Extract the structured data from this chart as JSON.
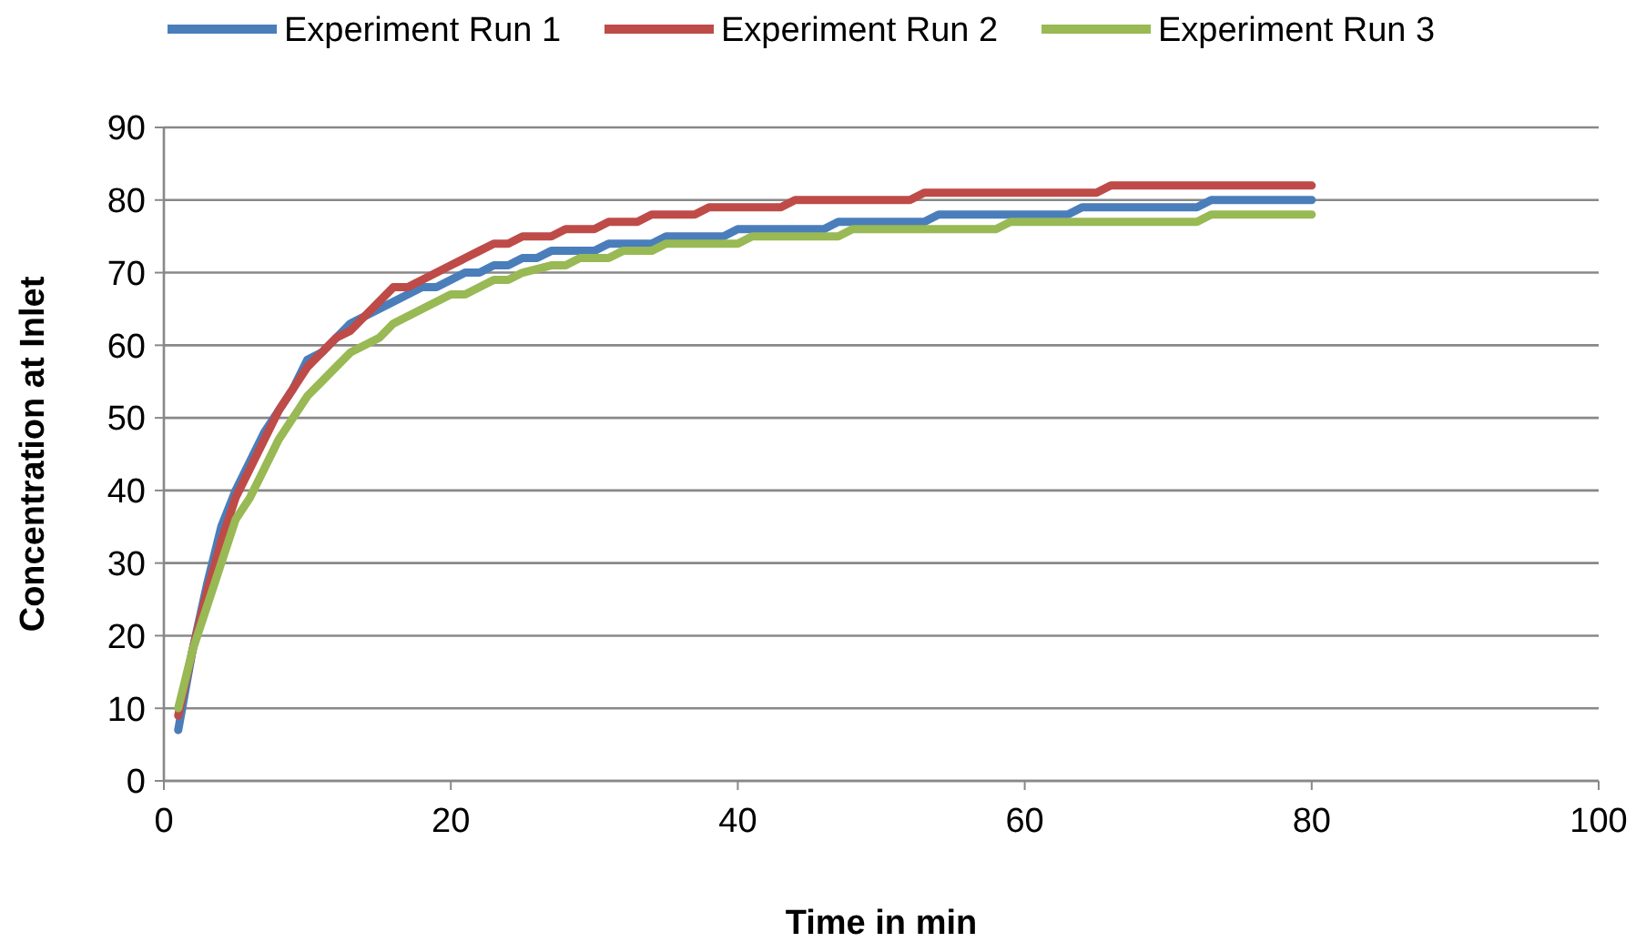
{
  "chart_data": {
    "type": "line",
    "xlabel": "Time in min",
    "ylabel": "Concentration at Inlet",
    "xlim": [
      0,
      100
    ],
    "xticks": [
      0,
      20,
      40,
      60,
      80,
      100
    ],
    "ylim": [
      0,
      90
    ],
    "yticks": [
      0,
      10,
      20,
      30,
      40,
      50,
      60,
      70,
      80,
      90
    ],
    "grid": "y",
    "legend": "top",
    "marker": "none",
    "line_style": "solid",
    "series": [
      {
        "name": "Experiment Run 1",
        "color": "#4a7ebb",
        "x": [
          1,
          2,
          3,
          4,
          5,
          6,
          7,
          8,
          9,
          10,
          11,
          12,
          13,
          14,
          15,
          16,
          17,
          18,
          19,
          20,
          21,
          22,
          23,
          24,
          25,
          26,
          27,
          30,
          31,
          34,
          35,
          39,
          40,
          46,
          47,
          53,
          54,
          63,
          64,
          72,
          73,
          80
        ],
        "values": [
          7,
          18,
          27,
          35,
          40,
          44,
          48,
          51,
          54,
          58,
          59,
          61,
          63,
          64,
          65,
          66,
          67,
          68,
          68,
          69,
          70,
          70,
          71,
          71,
          72,
          72,
          73,
          73,
          74,
          74,
          75,
          75,
          76,
          76,
          77,
          77,
          78,
          78,
          79,
          79,
          80,
          80
        ]
      },
      {
        "name": "Experiment Run 2",
        "color": "#be4b48",
        "x": [
          1,
          2,
          3,
          4,
          5,
          6,
          7,
          8,
          9,
          10,
          11,
          12,
          13,
          14,
          15,
          16,
          17,
          18,
          19,
          20,
          21,
          22,
          23,
          24,
          25,
          27,
          28,
          30,
          31,
          33,
          34,
          37,
          38,
          43,
          44,
          52,
          53,
          65,
          66,
          80
        ],
        "values": [
          9,
          18,
          26,
          33,
          39,
          43,
          47,
          51,
          54,
          57,
          59,
          61,
          62,
          64,
          66,
          68,
          68,
          69,
          70,
          71,
          72,
          73,
          74,
          74,
          75,
          75,
          76,
          76,
          77,
          77,
          78,
          78,
          79,
          79,
          80,
          80,
          81,
          81,
          82,
          82
        ]
      },
      {
        "name": "Experiment Run 3",
        "color": "#98b954",
        "x": [
          1,
          2,
          3,
          4,
          5,
          6,
          7,
          8,
          9,
          10,
          11,
          12,
          13,
          14,
          15,
          16,
          17,
          18,
          19,
          20,
          21,
          22,
          23,
          24,
          25,
          27,
          28,
          29,
          31,
          32,
          34,
          35,
          40,
          41,
          47,
          48,
          58,
          59,
          72,
          73,
          80
        ],
        "values": [
          10,
          18,
          24,
          30,
          36,
          39,
          43,
          47,
          50,
          53,
          55,
          57,
          59,
          60,
          61,
          63,
          64,
          65,
          66,
          67,
          67,
          68,
          69,
          69,
          70,
          71,
          71,
          72,
          72,
          73,
          73,
          74,
          74,
          75,
          75,
          76,
          76,
          77,
          77,
          78,
          78
        ]
      }
    ]
  }
}
